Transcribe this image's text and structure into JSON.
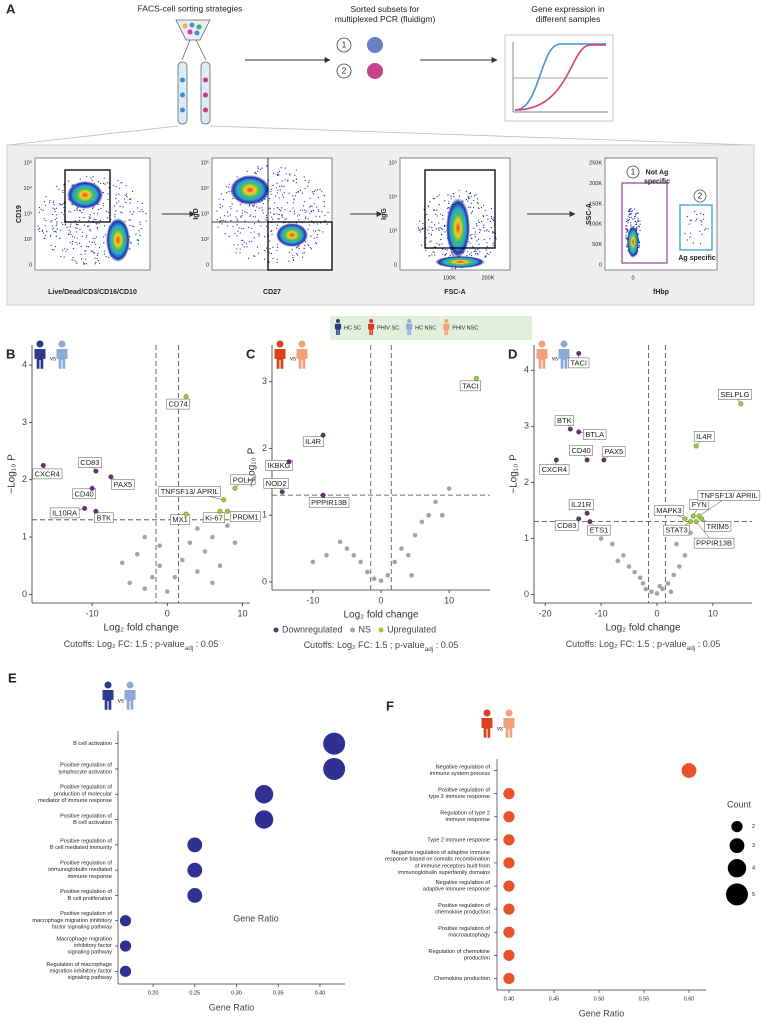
{
  "panel_a": {
    "letter": "A",
    "step1": "FACS-cell sorting strategies",
    "step2": "Sorted subsets for\nmultiplexed PCR (fluidigm)",
    "step3": "Gene expression in\ndifferent samples",
    "subset_1": "1",
    "subset_2": "2",
    "flow_plots": [
      {
        "y_label": "CD19",
        "x_label": "Live/Dead/CD3/CD16/CD10",
        "y_ticks": [
          "10⁵",
          "10⁴",
          "10³",
          "10²",
          "0"
        ]
      },
      {
        "y_label": "IgD",
        "x_label": "CD27",
        "y_ticks": [
          "10⁵",
          "10⁴",
          "10³",
          "10²",
          "0"
        ]
      },
      {
        "y_label": "IgG",
        "x_label": "FSC-A",
        "x_ticks": [
          "100K",
          "200K"
        ],
        "y_ticks": [
          "10⁵",
          "10⁴",
          "10³",
          "0"
        ]
      },
      {
        "y_label": "SSC-A",
        "x_label": "fHbp",
        "y_ticks": [
          "250K",
          "200K",
          "150K",
          "100K",
          "50K",
          "0"
        ],
        "x_ticks": [
          "0"
        ],
        "gate_1_number": "1",
        "gate_1": "Not Ag\nspecific",
        "gate_2_number": "2",
        "gate_2": "Ag specific"
      }
    ]
  },
  "legend_strip": {
    "items": [
      "HC SC",
      "PHIV SC",
      "HC NSC",
      "PHIV NSC"
    ],
    "colors": [
      "#2b3a8c",
      "#d9401e",
      "#8fa9d6",
      "#f2a07b"
    ]
  },
  "chart_data": [
    {
      "type": "scatter",
      "letter": "B",
      "comparison": "vs",
      "icon_colors": [
        "#2b3a8c",
        "#8fa9d6"
      ],
      "y_label": "−Log₁₀ P",
      "x_label": "Log₂ fold change",
      "cutoff_note": {
        "text": "Cutoffs:  Log₂ FC: 1.5 ; p-value",
        "subscript": "adj",
        "suffix": " : 0.05"
      },
      "xlim": [
        -18,
        11
      ],
      "ylim": [
        -0.15,
        4.35
      ],
      "xticks": [
        -10,
        0,
        10
      ],
      "yticks": [
        0,
        1,
        2,
        3,
        4
      ],
      "vlines": [
        -1.5,
        1.5
      ],
      "hline": 1.301,
      "series": [
        {
          "color": "#6b2d7b",
          "x": [
            -16.5,
            -9.5,
            -7.5,
            -10,
            -11,
            -9.5
          ],
          "values": [
            2.25,
            2.15,
            2.05,
            1.85,
            1.5,
            1.45
          ],
          "labels": [
            "CXCR4",
            "CD83",
            "PAX5",
            "CD40",
            "IL10RA",
            "BTK"
          ]
        },
        {
          "color": "#a3a3a3",
          "x": [
            -3,
            -2,
            -1,
            0,
            -5,
            -6,
            -4,
            1,
            2,
            3,
            4,
            5,
            6,
            7,
            8,
            -3,
            -1,
            4,
            9,
            6
          ],
          "values": [
            0.1,
            0.3,
            0.5,
            0.05,
            0.2,
            0.55,
            0.7,
            0.3,
            0.6,
            0.9,
            0.4,
            0.75,
            1.0,
            0.5,
            1.2,
            1.0,
            0.85,
            1.15,
            0.9,
            0.2
          ]
        },
        {
          "color": "#9acd32",
          "x": [
            2.5,
            9,
            7.5,
            2.5,
            7,
            8
          ],
          "values": [
            3.45,
            1.85,
            1.65,
            1.4,
            1.45,
            1.45
          ],
          "labels": [
            "CD74",
            "POLH",
            "TNFSF13/ APRIL",
            "MX1",
            "Ki-67",
            "PRDM1"
          ]
        }
      ]
    },
    {
      "type": "scatter",
      "letter": "C",
      "comparison": "vs",
      "icon_colors": [
        "#d9401e",
        "#f2a07b"
      ],
      "y_label": "−Log₁₀ P",
      "x_label": "Log₂ fold change",
      "cutoff_note": {
        "text": "Cutoffs:  Log₂ FC: 1.5 ; p-value",
        "subscript": "adj",
        "suffix": " : 0.05"
      },
      "xlim": [
        -16,
        16
      ],
      "ylim": [
        -0.12,
        3.55
      ],
      "xticks": [
        -10,
        0,
        10
      ],
      "yticks": [
        0,
        1,
        2,
        3
      ],
      "vlines": [
        -1.5,
        1.5
      ],
      "hline": 1.301,
      "legend": true,
      "series": [
        {
          "name": "Downregulated",
          "color": "#6b2d7b",
          "x": [
            -8.5,
            -13.5,
            -14.5,
            -8.5
          ],
          "values": [
            2.2,
            1.8,
            1.35,
            1.3
          ],
          "labels": [
            "IL4R",
            "IKBKG",
            "NOD2",
            "PPPIR13B"
          ]
        },
        {
          "name": "NS",
          "color": "#a3a3a3",
          "x": [
            -6,
            -5,
            -4,
            -3,
            -2,
            -1,
            0,
            1,
            2,
            3,
            4,
            5,
            6,
            7,
            8,
            9,
            -8,
            -10,
            10,
            4.5
          ],
          "values": [
            0.6,
            0.5,
            0.4,
            0.3,
            0.15,
            0.05,
            0.02,
            0.1,
            0.3,
            0.5,
            0.4,
            0.7,
            0.9,
            1.0,
            1.2,
            1.0,
            0.4,
            0.3,
            1.4,
            0.1
          ]
        },
        {
          "name": "Upregulated",
          "color": "#9acd32",
          "x": [
            14
          ],
          "values": [
            3.05
          ],
          "labels": [
            "TACI"
          ]
        }
      ]
    },
    {
      "type": "scatter",
      "letter": "D",
      "comparison": "vs",
      "icon_colors": [
        "#f2a07b",
        "#8fa9d6"
      ],
      "y_label": "−Log₁₀ P",
      "x_label": "Log₂ fold change",
      "cutoff_note": {
        "text": "Cutoffs:  Log₂ FC: 1.5 ; p-value",
        "subscript": "adj",
        "suffix": " : 0.05"
      },
      "xlim": [
        -22,
        17
      ],
      "ylim": [
        -0.15,
        4.45
      ],
      "xticks": [
        -20,
        -10,
        0,
        10
      ],
      "yticks": [
        0,
        1,
        2,
        3,
        4
      ],
      "vlines": [
        -1.5,
        1.5
      ],
      "hline": 1.301,
      "series": [
        {
          "color": "#6b2d7b",
          "x": [
            -14,
            -15.5,
            -14,
            -12.5,
            -9.5,
            -18,
            -12.5,
            -14,
            -12
          ],
          "values": [
            4.3,
            2.95,
            2.9,
            2.4,
            2.4,
            2.4,
            1.45,
            1.35,
            1.3
          ],
          "labels": [
            "TACI",
            "BTK",
            "BTLA",
            "CD40",
            "PAX5",
            "CXCR4",
            "IL21R",
            "CD83",
            "ETS1"
          ]
        },
        {
          "color": "#a3a3a3",
          "x": [
            -8,
            -6,
            -5,
            -4,
            -3,
            -2,
            -1,
            0,
            1,
            2,
            3,
            4,
            5,
            -7,
            -10,
            6,
            3.5,
            -2.5,
            0.5,
            2.5
          ],
          "values": [
            0.9,
            0.7,
            0.5,
            0.4,
            0.3,
            0.1,
            0.05,
            0.02,
            0.1,
            0.2,
            0.35,
            0.5,
            0.7,
            0.6,
            1.0,
            1.1,
            0.9,
            0.2,
            0.15,
            0.05
          ]
        },
        {
          "color": "#9acd32",
          "x": [
            15,
            7,
            5,
            6.5,
            7.5,
            6,
            8,
            7
          ],
          "values": [
            3.4,
            2.65,
            1.35,
            1.4,
            1.4,
            1.3,
            1.35,
            1.3
          ],
          "labels": [
            "SELPLG",
            "IL4R",
            "MAPK3",
            "FYN",
            "TNFSF13/ APRIL",
            "STAT3",
            "TRIM5",
            "PPPIR13B"
          ]
        }
      ]
    },
    {
      "type": "dot",
      "letter": "E",
      "comparison": "vs",
      "icon_colors": [
        "#2b3a8c",
        "#8fa9d6"
      ],
      "color": "#2e3192",
      "x_label": "Gene Ratio",
      "annotation": "Gene Ratio",
      "categories": [
        "B cell activation",
        "Positive regulation of\nlymphocyte activation",
        "Positive regulation of\nproduction of molecular\nmediator of immune response",
        "Positive regulation of\nB cell activation",
        "Positive regulation of\nB cell mediated immunity",
        "Positive regulation of\nimmunoglobulin mediated\nimmune response",
        "Positive regulation of\nB cell proliferation",
        "Positive regulation of\nmacrophage migration inhibitory\nfactor signaling pathway",
        "Macrophage migration\ninhibitory factor\nsignaling pathway",
        "Regulation of macrophage\nmigration inhibitory factor\nsignaling pathway"
      ],
      "values": [
        0.417,
        0.417,
        0.333,
        0.333,
        0.25,
        0.25,
        0.25,
        0.167,
        0.167,
        0.167
      ],
      "sizes": [
        5,
        5,
        4,
        4,
        3,
        3,
        3,
        2,
        2,
        2
      ],
      "xlim": [
        0.158,
        0.43
      ],
      "xticks": [
        {
          "value": 0.2,
          "label": "0.20"
        },
        {
          "value": 0.25,
          "label": "0.25"
        },
        {
          "value": 0.3,
          "label": "0.30"
        },
        {
          "value": 0.35,
          "label": "0.35"
        },
        {
          "value": 0.4,
          "label": "0.40"
        }
      ]
    },
    {
      "type": "dot",
      "letter": "F",
      "comparison": "vs",
      "icon_colors": [
        "#d9401e",
        "#f2a07b"
      ],
      "color": "#e8512b",
      "x_label": "Gene Ratio",
      "categories": [
        "Negative regulation of\nimmune system process",
        "Positive regulation of\ntype 2 immune response",
        "Regulation of type 2\nimmune response",
        "Type 2 immune response",
        "Negative regulation of adaptive immune\nresponse based on somatic recombination\nof immune receptors built from\nimmunoglobulin superfamily domains",
        "Negative regulation of\nadaptive immune response",
        "Positive regulation of\nchemokine production",
        "Positive regulation of\nmacroautophagy",
        "Regulation of chemokine\nproduction",
        "Chemokine production"
      ],
      "values": [
        0.6,
        0.4,
        0.4,
        0.4,
        0.4,
        0.4,
        0.4,
        0.4,
        0.4,
        0.4
      ],
      "sizes": [
        3,
        2,
        2,
        2,
        2,
        2,
        2,
        2,
        2,
        2
      ],
      "xlim": [
        0.3867,
        0.6189
      ],
      "xticks": [
        {
          "value": 0.4,
          "label": "0.40"
        },
        {
          "value": 0.45,
          "label": "0.45"
        },
        {
          "value": 0.5,
          "label": "0.50"
        },
        {
          "value": 0.55,
          "label": "0.55"
        },
        {
          "value": 0.6,
          "label": "0.60"
        }
      ],
      "size_legend": {
        "title": "Count",
        "values": [
          2,
          3,
          4,
          5
        ]
      }
    }
  ]
}
